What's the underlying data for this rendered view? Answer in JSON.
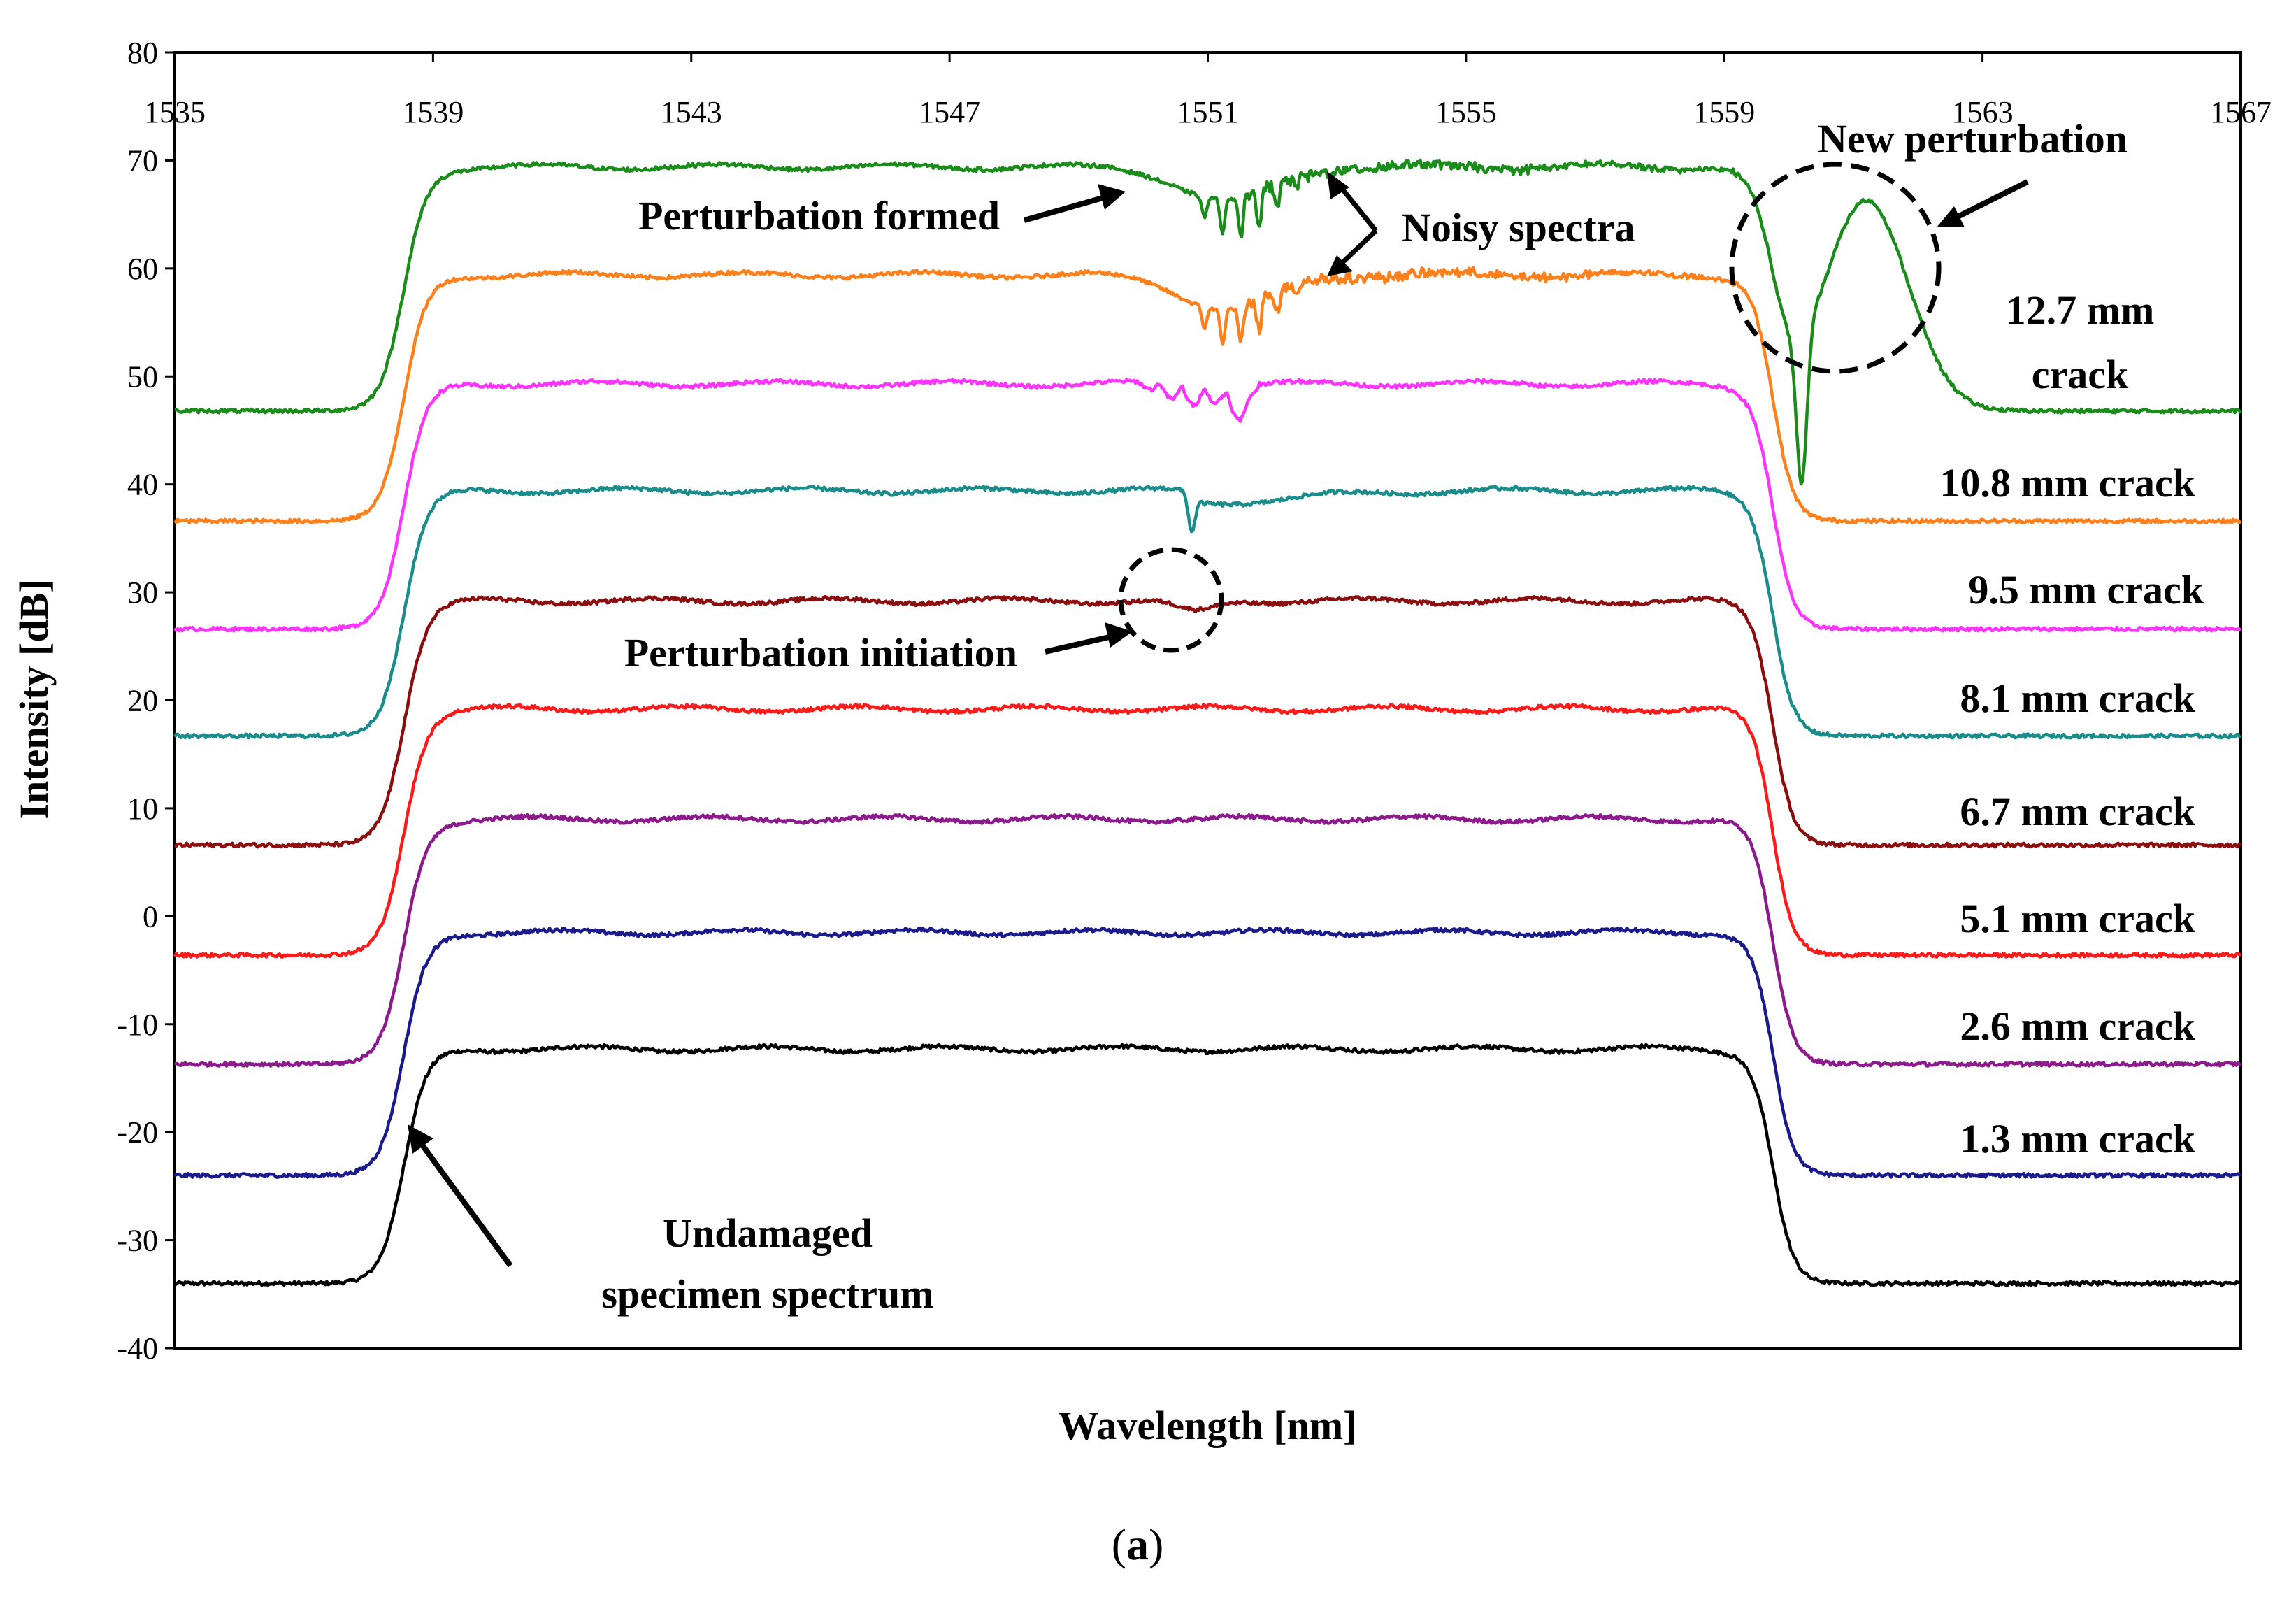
{
  "chart_data": {
    "type": "line",
    "title": "",
    "xlabel": "Wavelength [nm]",
    "ylabel": "Intensity [dB]",
    "xlim": [
      1535,
      1567
    ],
    "ylim": [
      -40,
      80
    ],
    "x_ticks": [
      "1535",
      "1539",
      "1543",
      "1547",
      "1551",
      "1555",
      "1559",
      "1563",
      "1567"
    ],
    "y_ticks": [
      "80",
      "70",
      "60",
      "50",
      "40",
      "30",
      "20",
      "10",
      "0",
      "-10",
      "-20",
      "-30",
      "-40"
    ],
    "grid": false,
    "figure_label_open": "(",
    "figure_label_letter": "a",
    "figure_label_close": ")",
    "series": [
      {
        "name": "Undamaged specimen spectrum",
        "color": "#000000",
        "baseline": -34,
        "plateau": -12.3,
        "features": []
      },
      {
        "name": "1.3 mm crack",
        "color": "#1a1a8c",
        "baseline": -24,
        "plateau": -1.5,
        "features": []
      },
      {
        "name": "2.6 mm crack",
        "color": "#8c1a8c",
        "baseline": -13.7,
        "plateau": 9,
        "features": []
      },
      {
        "name": "5.1 mm crack",
        "color": "#ff1a1a",
        "baseline": -3.6,
        "plateau": 19.2,
        "features": []
      },
      {
        "name": "6.7 mm crack",
        "color": "#8c0d0d",
        "baseline": 6.6,
        "plateau": 29.2,
        "features": [
          "initiation"
        ]
      },
      {
        "name": "8.1 mm crack",
        "color": "#1a8c8c",
        "baseline": 16.7,
        "plateau": 39.4,
        "features": [
          "small"
        ]
      },
      {
        "name": "9.5 mm crack",
        "color": "#ff33ff",
        "baseline": 26.6,
        "plateau": 49.3,
        "features": [
          "medium"
        ]
      },
      {
        "name": "10.8 mm crack",
        "color": "#ff7f1a",
        "baseline": 36.6,
        "plateau": 59.4,
        "features": [
          "large"
        ]
      },
      {
        "name": "12.7 mm crack",
        "color": "#1a8c1a",
        "baseline": 46.8,
        "plateau": 69.4,
        "features": [
          "large",
          "new"
        ]
      }
    ],
    "series_labels": [
      {
        "text": "1.3 mm crack"
      },
      {
        "text": "2.6 mm crack"
      },
      {
        "text": "5.1 mm crack"
      },
      {
        "text": "6.7 mm crack"
      },
      {
        "text": "8.1 mm crack"
      },
      {
        "text": "9.5 mm crack"
      },
      {
        "text": "10.8 mm crack"
      },
      {
        "line1": "12.7 mm",
        "line2": "crack"
      }
    ],
    "annotations": {
      "perturbation_formed": "Perturbation formed",
      "noisy_spectra": "Noisy spectra",
      "new_perturbation": "New perturbation",
      "perturbation_initiation": "Perturbation initiation",
      "undamaged_line1": "Undamaged",
      "undamaged_line2": "specimen spectrum"
    }
  }
}
